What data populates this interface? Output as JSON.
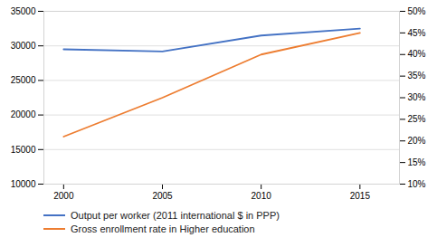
{
  "chart_data": {
    "type": "line",
    "x": [
      2000,
      2005,
      2010,
      2015
    ],
    "xlim": [
      1999,
      2017
    ],
    "xticks": [
      2000,
      2005,
      2010,
      2015
    ],
    "ylim": [
      10000,
      35000
    ],
    "yticks": [
      10000,
      15000,
      20000,
      25000,
      30000,
      35000
    ],
    "y2lim": [
      0.1,
      0.5
    ],
    "y2ticks": [
      {
        "value": 0.1,
        "label": "10%"
      },
      {
        "value": 0.15,
        "label": "15%"
      },
      {
        "value": 0.2,
        "label": "20%"
      },
      {
        "value": 0.25,
        "label": "25%"
      },
      {
        "value": 0.3,
        "label": "30%"
      },
      {
        "value": 0.35,
        "label": "35%"
      },
      {
        "value": 0.4,
        "label": "40%"
      },
      {
        "value": 0.45,
        "label": "45%"
      },
      {
        "value": 0.5,
        "label": "50%"
      }
    ],
    "grid": true,
    "legend": "bottom",
    "series": [
      {
        "name": "Output per worker (2011 international $ in PPP)",
        "color": "#4472C4",
        "values": [
          29500,
          29200,
          31500,
          32500
        ]
      },
      {
        "name": "Gross enrollment rate in Higher education",
        "color": "#ED7D31",
        "values": [
          0.21,
          0.3,
          0.4,
          0.45
        ],
        "axis": "y2"
      }
    ]
  }
}
